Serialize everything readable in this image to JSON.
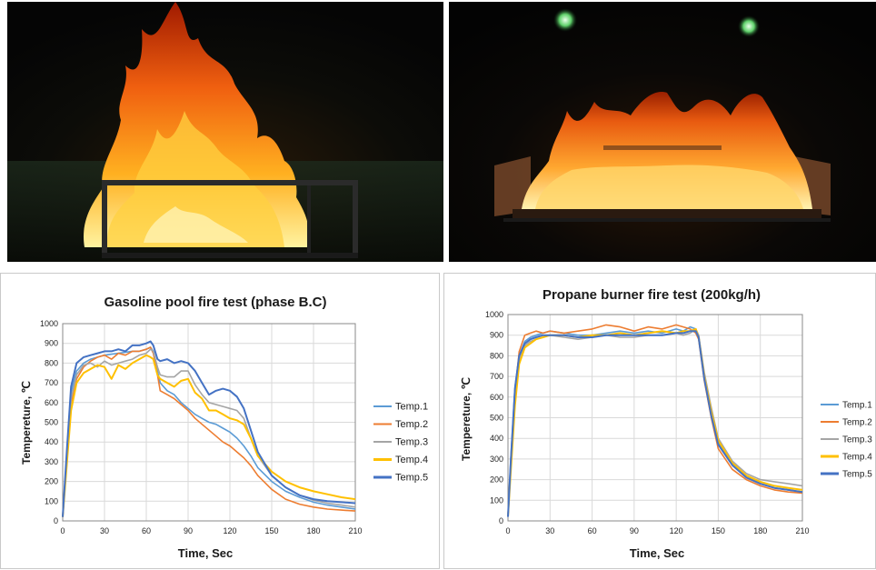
{
  "photos": [
    {
      "name": "gasoline-pool-fire-photo",
      "scene": "gasoline pool fire in a metal frame pan"
    },
    {
      "name": "propane-burner-fire-photo",
      "scene": "propane burner array fire with two green lights"
    }
  ],
  "colors": {
    "Temp.1": "#5b9bd5",
    "Temp.2": "#ed7d31",
    "Temp.3": "#a5a5a5",
    "Temp.4": "#ffc000",
    "Temp.5": "#4472c4"
  },
  "chart_data": [
    {
      "type": "line",
      "title": "Gasoline pool fire test (phase B.C)",
      "xlabel": "Time, Sec",
      "ylabel": "Tempereture, ℃",
      "xlim": [
        0,
        210
      ],
      "ylim": [
        0,
        1000
      ],
      "xticks": [
        "0",
        "30",
        "60",
        "90",
        "120",
        "150",
        "180",
        "210"
      ],
      "yticks": [
        "0",
        "100",
        "200",
        "300",
        "400",
        "500",
        "600",
        "700",
        "800",
        "900",
        "1000"
      ],
      "grid": true,
      "legend_position": "right",
      "series": [
        {
          "name": "Temp.1",
          "x": [
            0,
            3,
            6,
            10,
            15,
            20,
            25,
            30,
            35,
            40,
            45,
            50,
            55,
            60,
            63,
            65,
            68,
            70,
            75,
            80,
            85,
            90,
            95,
            100,
            105,
            110,
            115,
            120,
            125,
            130,
            135,
            140,
            150,
            160,
            170,
            180,
            190,
            200,
            210
          ],
          "y": [
            20,
            350,
            650,
            760,
            800,
            820,
            830,
            840,
            845,
            850,
            855,
            860,
            860,
            870,
            880,
            860,
            760,
            700,
            660,
            640,
            600,
            570,
            540,
            520,
            500,
            490,
            470,
            450,
            420,
            380,
            330,
            270,
            200,
            150,
            120,
            95,
            80,
            70,
            60
          ]
        },
        {
          "name": "Temp.2",
          "x": [
            0,
            3,
            6,
            10,
            15,
            20,
            25,
            30,
            35,
            40,
            45,
            50,
            55,
            60,
            63,
            65,
            68,
            70,
            75,
            80,
            85,
            90,
            95,
            100,
            105,
            110,
            115,
            120,
            125,
            130,
            135,
            140,
            150,
            160,
            170,
            180,
            190,
            200,
            210
          ],
          "y": [
            20,
            300,
            600,
            720,
            780,
            810,
            830,
            840,
            820,
            850,
            840,
            860,
            860,
            870,
            880,
            850,
            740,
            660,
            640,
            620,
            590,
            560,
            520,
            490,
            460,
            430,
            400,
            380,
            350,
            320,
            280,
            230,
            160,
            110,
            85,
            70,
            60,
            55,
            50
          ]
        },
        {
          "name": "Temp.3",
          "x": [
            0,
            3,
            6,
            10,
            15,
            20,
            25,
            30,
            35,
            40,
            45,
            50,
            55,
            60,
            63,
            65,
            68,
            70,
            75,
            80,
            85,
            90,
            95,
            100,
            105,
            110,
            115,
            120,
            125,
            130,
            135,
            140,
            150,
            160,
            170,
            180,
            190,
            200,
            210
          ],
          "y": [
            20,
            330,
            620,
            740,
            790,
            800,
            780,
            810,
            790,
            800,
            810,
            820,
            840,
            850,
            870,
            860,
            780,
            740,
            730,
            730,
            760,
            760,
            690,
            640,
            600,
            590,
            580,
            570,
            560,
            520,
            420,
            330,
            230,
            170,
            130,
            105,
            90,
            80,
            70
          ]
        },
        {
          "name": "Temp.4",
          "x": [
            0,
            3,
            6,
            10,
            15,
            20,
            25,
            30,
            35,
            40,
            45,
            50,
            55,
            60,
            63,
            65,
            68,
            70,
            75,
            80,
            85,
            90,
            95,
            100,
            105,
            110,
            115,
            120,
            125,
            130,
            135,
            140,
            150,
            160,
            170,
            180,
            190,
            200,
            210
          ],
          "y": [
            20,
            290,
            560,
            700,
            750,
            770,
            790,
            780,
            720,
            790,
            770,
            800,
            820,
            840,
            830,
            820,
            740,
            720,
            700,
            680,
            710,
            720,
            650,
            620,
            560,
            560,
            540,
            520,
            510,
            490,
            420,
            330,
            250,
            200,
            170,
            150,
            135,
            120,
            110
          ]
        },
        {
          "name": "Temp.5",
          "x": [
            0,
            3,
            6,
            10,
            15,
            20,
            25,
            30,
            35,
            40,
            45,
            50,
            55,
            60,
            63,
            65,
            68,
            70,
            75,
            80,
            85,
            90,
            95,
            100,
            105,
            110,
            115,
            120,
            125,
            130,
            135,
            140,
            150,
            160,
            170,
            180,
            190,
            200,
            210
          ],
          "y": [
            20,
            360,
            680,
            800,
            830,
            840,
            850,
            860,
            860,
            870,
            860,
            890,
            890,
            900,
            910,
            890,
            820,
            810,
            820,
            800,
            810,
            800,
            760,
            700,
            640,
            660,
            670,
            660,
            630,
            570,
            460,
            350,
            230,
            170,
            130,
            110,
            100,
            95,
            90
          ]
        }
      ]
    },
    {
      "type": "line",
      "title": "Propane burner fire test (200kg/h)",
      "xlabel": "Time, Sec",
      "ylabel": "Tempereture, ℃",
      "xlim": [
        0,
        210
      ],
      "ylim": [
        0,
        1000
      ],
      "xticks": [
        "0",
        "30",
        "60",
        "90",
        "120",
        "150",
        "180",
        "210"
      ],
      "yticks": [
        "0",
        "100",
        "200",
        "300",
        "400",
        "500",
        "600",
        "700",
        "800",
        "900",
        "1000"
      ],
      "grid": true,
      "legend_position": "right",
      "series": [
        {
          "name": "Temp.1",
          "x": [
            0,
            2,
            5,
            8,
            12,
            16,
            20,
            25,
            30,
            40,
            50,
            60,
            70,
            80,
            90,
            100,
            110,
            120,
            125,
            130,
            134,
            136,
            138,
            140,
            145,
            150,
            160,
            170,
            180,
            190,
            200,
            210
          ],
          "y": [
            20,
            300,
            650,
            800,
            870,
            890,
            900,
            910,
            920,
            910,
            900,
            900,
            910,
            920,
            910,
            920,
            910,
            930,
            920,
            940,
            930,
            900,
            800,
            700,
            520,
            380,
            270,
            210,
            180,
            160,
            150,
            140
          ]
        },
        {
          "name": "Temp.2",
          "x": [
            0,
            2,
            5,
            8,
            12,
            16,
            20,
            25,
            30,
            40,
            50,
            60,
            70,
            80,
            90,
            100,
            110,
            120,
            125,
            130,
            134,
            136,
            138,
            140,
            145,
            150,
            160,
            170,
            180,
            190,
            200,
            210
          ],
          "y": [
            20,
            280,
            620,
            820,
            900,
            910,
            920,
            910,
            920,
            910,
            920,
            930,
            950,
            940,
            920,
            940,
            930,
            950,
            940,
            930,
            910,
            880,
            780,
            680,
            500,
            350,
            250,
            200,
            170,
            150,
            140,
            135
          ]
        },
        {
          "name": "Temp.3",
          "x": [
            0,
            2,
            5,
            8,
            12,
            16,
            20,
            25,
            30,
            40,
            50,
            60,
            70,
            80,
            90,
            100,
            110,
            120,
            125,
            130,
            134,
            136,
            138,
            140,
            145,
            150,
            160,
            170,
            180,
            190,
            200,
            210
          ],
          "y": [
            20,
            260,
            600,
            780,
            850,
            870,
            880,
            890,
            900,
            890,
            880,
            890,
            900,
            890,
            890,
            900,
            900,
            910,
            900,
            910,
            930,
            900,
            810,
            720,
            550,
            400,
            290,
            230,
            200,
            190,
            180,
            170
          ]
        },
        {
          "name": "Temp.4",
          "x": [
            0,
            2,
            5,
            8,
            12,
            16,
            20,
            25,
            30,
            40,
            50,
            60,
            70,
            80,
            90,
            100,
            110,
            120,
            125,
            130,
            134,
            136,
            138,
            140,
            145,
            150,
            160,
            170,
            180,
            190,
            200,
            210
          ],
          "y": [
            20,
            240,
            560,
            760,
            840,
            860,
            880,
            890,
            900,
            900,
            890,
            900,
            900,
            910,
            900,
            910,
            920,
            910,
            920,
            920,
            930,
            890,
            800,
            700,
            530,
            390,
            280,
            220,
            190,
            170,
            160,
            150
          ]
        },
        {
          "name": "Temp.5",
          "x": [
            0,
            2,
            5,
            8,
            12,
            16,
            20,
            25,
            30,
            40,
            50,
            60,
            70,
            80,
            90,
            100,
            110,
            120,
            125,
            130,
            134,
            136,
            138,
            140,
            145,
            150,
            160,
            170,
            180,
            190,
            200,
            210
          ],
          "y": [
            20,
            290,
            640,
            800,
            860,
            880,
            890,
            900,
            900,
            900,
            890,
            890,
            900,
            900,
            900,
            900,
            900,
            910,
            910,
            920,
            920,
            890,
            790,
            690,
            510,
            370,
            270,
            210,
            180,
            160,
            150,
            140
          ]
        }
      ]
    }
  ]
}
